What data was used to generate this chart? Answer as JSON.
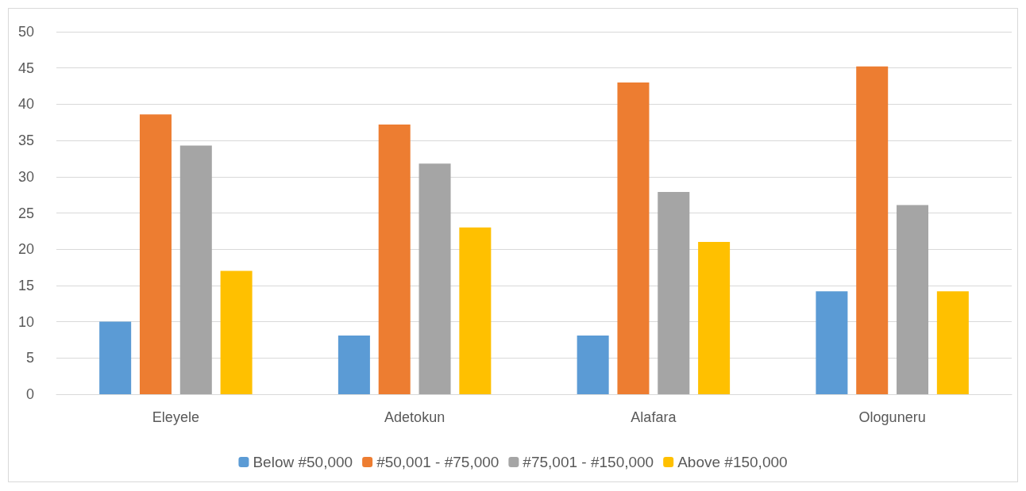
{
  "chart_data": {
    "type": "bar",
    "categories": [
      "Eleyele",
      "Adetokun",
      "Alafara",
      "Ologuneru"
    ],
    "series": [
      {
        "name": "Below #50,000",
        "color": "#5b9bd5",
        "values": [
          10,
          8.1,
          8.1,
          14.2
        ]
      },
      {
        "name": "#50,001 - #75,000",
        "color": "#ed7d31",
        "values": [
          38.6,
          37.2,
          43.0,
          45.2
        ]
      },
      {
        "name": "#75,001 - #150,000",
        "color": "#a5a5a5",
        "values": [
          34.3,
          31.8,
          27.9,
          26.1
        ]
      },
      {
        "name": "Above #150,000",
        "color": "#ffc000",
        "values": [
          17.0,
          23.0,
          21.0,
          14.2
        ]
      }
    ],
    "ylim": [
      0,
      50
    ],
    "yticks": [
      0,
      5,
      10,
      15,
      20,
      25,
      30,
      35,
      40,
      45,
      50
    ],
    "grid": "y",
    "legend": "bottom"
  }
}
